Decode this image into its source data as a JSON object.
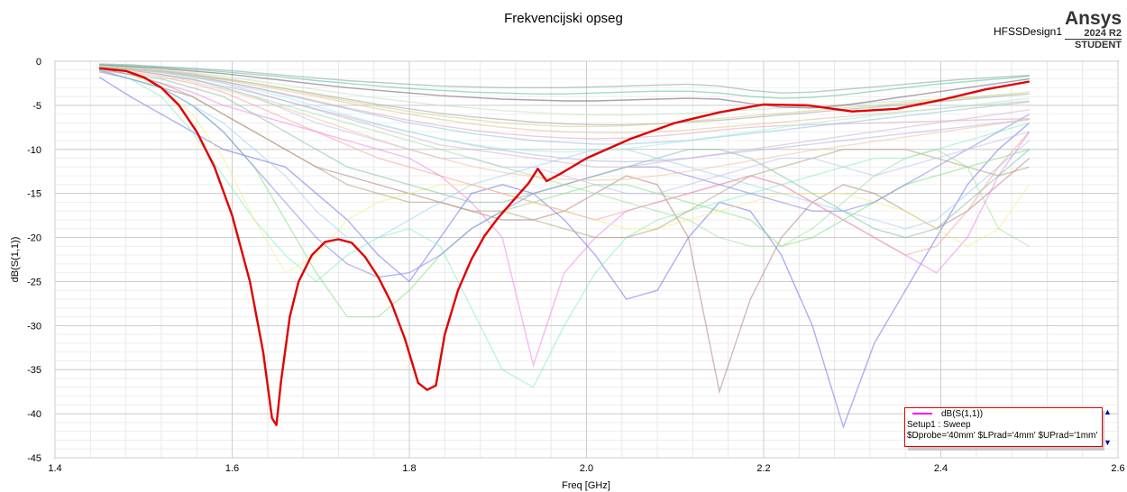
{
  "chart_data": {
    "type": "line",
    "title": "Frekvencijski opseg",
    "xlabel": "Freq [GHz]",
    "ylabel": "dB(S(1,1))",
    "xlim": [
      1.4,
      2.6
    ],
    "ylim": [
      -45,
      0
    ],
    "x_ticks": [
      "1.4",
      "1.6",
      "1.8",
      "2.0",
      "2.2",
      "2.4",
      "2.6"
    ],
    "y_ticks": [
      "0",
      "-5",
      "-10",
      "-15",
      "-20",
      "-25",
      "-30",
      "-35",
      "-40",
      "-45"
    ],
    "grid": true,
    "highlighted_series": {
      "name": "dB(S(1,1))",
      "color": "#e00000",
      "x": [
        1.45,
        1.48,
        1.5,
        1.52,
        1.54,
        1.56,
        1.58,
        1.6,
        1.62,
        1.635,
        1.645,
        1.65,
        1.655,
        1.665,
        1.675,
        1.69,
        1.705,
        1.72,
        1.735,
        1.75,
        1.765,
        1.78,
        1.795,
        1.81,
        1.82,
        1.83,
        1.84,
        1.855,
        1.87,
        1.885,
        1.9,
        1.92,
        1.935,
        1.945,
        1.955,
        1.97,
        2.0,
        2.05,
        2.1,
        2.15,
        2.2,
        2.25,
        2.3,
        2.35,
        2.4,
        2.45,
        2.5
      ],
      "y": [
        -0.8,
        -1.1,
        -1.8,
        -3.0,
        -5.0,
        -8.0,
        -12.0,
        -17.5,
        -25.0,
        -33.0,
        -40.5,
        -41.3,
        -36.5,
        -29.0,
        -25.0,
        -22.0,
        -20.5,
        -20.2,
        -20.6,
        -22.2,
        -24.5,
        -27.5,
        -31.5,
        -36.5,
        -37.3,
        -36.8,
        -31.0,
        -26.0,
        -22.5,
        -19.8,
        -17.8,
        -15.5,
        -13.8,
        -12.2,
        -13.6,
        -12.8,
        -11.0,
        -8.8,
        -7.0,
        -5.8,
        -4.9,
        -5.0,
        -5.7,
        -5.4,
        -4.4,
        -3.2,
        -2.3
      ]
    },
    "background_series": [
      {
        "color": "#6c6cf0",
        "y": [
          -1.8,
          -4,
          -6,
          -8,
          -10,
          -11,
          -12,
          -15,
          -18,
          -22,
          -25,
          -20,
          -15,
          -14,
          -15,
          -18,
          -22,
          -27,
          -26,
          -20,
          -16,
          -17,
          -22,
          -30,
          -41.5,
          -32,
          -26,
          -20,
          -14,
          -10,
          -7
        ]
      },
      {
        "color": "#b08080",
        "y": [
          -1.2,
          -2,
          -3,
          -4,
          -6,
          -8,
          -10,
          -12,
          -13,
          -14,
          -15,
          -16,
          -17,
          -18,
          -18,
          -17,
          -15,
          -13,
          -14,
          -20,
          -37.5,
          -27,
          -20,
          -16,
          -14,
          -15,
          -17,
          -19,
          -17,
          -14,
          -11
        ]
      },
      {
        "color": "#f080f0",
        "y": [
          -1,
          -1.5,
          -2.5,
          -3.5,
          -5,
          -6,
          -7,
          -8,
          -9,
          -10,
          -11,
          -13,
          -16,
          -20,
          -34.5,
          -24,
          -20,
          -17,
          -16,
          -15,
          -14,
          -13,
          -14,
          -16,
          -18,
          -20,
          -22,
          -24,
          -20,
          -13,
          -8
        ]
      },
      {
        "color": "#80f0c0",
        "y": [
          -1,
          -2,
          -4,
          -8,
          -13,
          -18,
          -22,
          -25,
          -22,
          -20,
          -19,
          -21,
          -28,
          -35,
          -37,
          -30,
          -24,
          -20,
          -18,
          -17,
          -16,
          -15,
          -14,
          -13,
          -12,
          -11,
          -11,
          -10,
          -9,
          -8,
          -7
        ]
      },
      {
        "color": "#80e080",
        "y": [
          -1,
          -2,
          -3,
          -5,
          -8,
          -12,
          -18,
          -24,
          -29,
          -29,
          -26,
          -22,
          -19,
          -17,
          -16,
          -15,
          -14,
          -14,
          -15,
          -16,
          -17,
          -18,
          -21,
          -20,
          -18,
          -16,
          -14,
          -13,
          -12,
          -11,
          -10
        ]
      },
      {
        "color": "#f0f080",
        "y": [
          -0.8,
          -1.5,
          -3,
          -6,
          -11,
          -18,
          -24,
          -22,
          -18,
          -16,
          -15,
          -14,
          -14,
          -15,
          -16,
          -17,
          -18,
          -19,
          -19,
          -18,
          -17,
          -16,
          -15,
          -15,
          -15,
          -16,
          -17,
          -19,
          -21,
          -19,
          -14
        ]
      },
      {
        "color": "#8080f0",
        "y": [
          -1,
          -2,
          -3,
          -5,
          -8,
          -12,
          -16,
          -20,
          -23,
          -24.5,
          -24,
          -22,
          -19,
          -17,
          -15,
          -14,
          -13,
          -12,
          -12,
          -13,
          -14,
          -15,
          -16,
          -17,
          -17,
          -16,
          -14,
          -12,
          -10,
          -8,
          -6
        ]
      },
      {
        "color": "#a0d0f0",
        "y": [
          -1,
          -2,
          -3,
          -5,
          -7,
          -10,
          -13,
          -17,
          -20,
          -20,
          -18,
          -16,
          -14,
          -13,
          -12,
          -11,
          -10,
          -10,
          -11,
          -12,
          -13,
          -14,
          -15,
          -16,
          -17,
          -18,
          -19,
          -18,
          -15,
          -12,
          -9
        ]
      },
      {
        "color": "#b0a070",
        "y": [
          -0.8,
          -1.5,
          -2.5,
          -4,
          -6,
          -8,
          -10,
          -12,
          -14,
          -15,
          -16,
          -16,
          -17,
          -17,
          -18,
          -19,
          -20,
          -20,
          -19,
          -17,
          -15,
          -13,
          -12,
          -11,
          -10,
          -10,
          -10,
          -11,
          -12,
          -13,
          -12
        ]
      },
      {
        "color": "#80c0a0",
        "y": [
          -0.8,
          -1.5,
          -2,
          -3,
          -4,
          -6,
          -8,
          -10,
          -12,
          -13,
          -14,
          -15,
          -16,
          -16,
          -15,
          -14,
          -13,
          -12,
          -11,
          -10,
          -10,
          -11,
          -13,
          -15,
          -17,
          -19,
          -20,
          -19,
          -16,
          -13,
          -10
        ]
      },
      {
        "color": "#f0a0a0",
        "y": [
          -0.7,
          -1.2,
          -1.8,
          -2.5,
          -3.5,
          -5,
          -6.5,
          -8,
          -9.5,
          -11,
          -12,
          -13,
          -14,
          -15,
          -16,
          -17,
          -18,
          -17,
          -16,
          -15,
          -14,
          -13,
          -14,
          -16,
          -18,
          -20,
          -22,
          -21,
          -17,
          -12,
          -8
        ]
      },
      {
        "color": "#c0c0f0",
        "y": [
          -0.7,
          -1,
          -1.5,
          -2,
          -3,
          -4,
          -5.5,
          -7,
          -8,
          -9,
          -10,
          -11,
          -11,
          -12,
          -12,
          -13,
          -14,
          -15,
          -15,
          -14,
          -13,
          -12,
          -11,
          -11,
          -12,
          -13,
          -12,
          -11,
          -10,
          -9,
          -8
        ]
      },
      {
        "color": "#a0e0a0",
        "y": [
          -0.7,
          -1,
          -1.5,
          -2,
          -3,
          -4,
          -5,
          -6,
          -7,
          -8,
          -9,
          -10,
          -11,
          -12,
          -13,
          -14,
          -15,
          -16,
          -17,
          -18,
          -20,
          -21,
          -21,
          -19,
          -16,
          -13,
          -11,
          -10,
          -12,
          -19,
          -21
        ]
      },
      {
        "color": "#d0b0d0",
        "y": [
          -0.6,
          -0.9,
          -1.3,
          -1.8,
          -2.5,
          -3.5,
          -4.5,
          -5.5,
          -6.5,
          -7.5,
          -8.5,
          -9.5,
          -10,
          -10.5,
          -11,
          -11.5,
          -12,
          -12,
          -11.5,
          -11,
          -10.5,
          -10,
          -9.5,
          -9,
          -8.5,
          -8,
          -7.5,
          -7,
          -6.5,
          -6,
          -5.5
        ]
      },
      {
        "color": "#90c0e0",
        "y": [
          -0.6,
          -0.9,
          -1.2,
          -1.7,
          -2.3,
          -3,
          -3.8,
          -4.6,
          -5.4,
          -6.2,
          -7,
          -7.6,
          -8.2,
          -8.6,
          -9,
          -9.2,
          -9.4,
          -9.4,
          -9.2,
          -9,
          -8.6,
          -8.2,
          -7.8,
          -7.4,
          -7,
          -6.6,
          -6.2,
          -5.8,
          -5.4,
          -5,
          -4.6
        ]
      },
      {
        "color": "#e0c090",
        "y": [
          -0.6,
          -0.9,
          -1.2,
          -1.6,
          -2.1,
          -2.7,
          -3.3,
          -4,
          -4.7,
          -5.4,
          -6,
          -6.6,
          -7.1,
          -7.5,
          -7.8,
          -8,
          -8.1,
          -8.1,
          -8,
          -7.8,
          -7.5,
          -7.2,
          -6.9,
          -6.6,
          -6.3,
          -6,
          -5.7,
          -5.4,
          -5.1,
          -4.8,
          -4.5
        ]
      },
      {
        "color": "#a0a0a0",
        "y": [
          -0.5,
          -0.8,
          -1.1,
          -1.5,
          -2,
          -2.5,
          -3.1,
          -3.7,
          -4.3,
          -4.9,
          -5.4,
          -5.9,
          -6.3,
          -6.6,
          -6.9,
          -7.1,
          -7.2,
          -7.2,
          -7.1,
          -6.9,
          -6.7,
          -6.4,
          -6.1,
          -5.8,
          -5.5,
          -5.2,
          -4.9,
          -4.6,
          -4.3,
          -4,
          -3.7
        ]
      },
      {
        "color": "#c0e0c0",
        "y": [
          -0.5,
          -0.7,
          -1,
          -1.3,
          -1.7,
          -2.2,
          -2.7,
          -3.2,
          -3.7,
          -4.2,
          -4.6,
          -5,
          -5.3,
          -5.6,
          -5.8,
          -6,
          -6.1,
          -6.1,
          -6,
          -5.9,
          -5.7,
          -5.5,
          -5.3,
          -5.1,
          -4.9,
          -4.7,
          -4.5,
          -4.3,
          -4.1,
          -3.9,
          -3.7
        ]
      },
      {
        "color": "#705070",
        "y": [
          -0.4,
          -0.6,
          -0.8,
          -1.1,
          -1.4,
          -1.8,
          -2.2,
          -2.6,
          -3,
          -3.3,
          -3.6,
          -3.9,
          -4.1,
          -4.3,
          -4.4,
          -4.5,
          -4.5,
          -4.4,
          -4.3,
          -4.2,
          -4.3,
          -4.8,
          -5.2,
          -5.3,
          -5,
          -4.5,
          -4,
          -3.5,
          -3,
          -2.5,
          -2
        ]
      },
      {
        "color": "#50c090",
        "y": [
          -0.4,
          -0.5,
          -0.7,
          -0.9,
          -1.2,
          -1.5,
          -1.8,
          -2.2,
          -2.5,
          -2.8,
          -3.1,
          -3.3,
          -3.5,
          -3.6,
          -3.7,
          -3.7,
          -3.6,
          -3.5,
          -3.4,
          -3.4,
          -3.6,
          -4,
          -4.2,
          -4.1,
          -3.8,
          -3.4,
          -3,
          -2.6,
          -2.3,
          -2,
          -1.7
        ]
      },
      {
        "color": "#e0a0c0",
        "y": [
          -0.5,
          -0.8,
          -1.2,
          -1.7,
          -2.3,
          -3,
          -3.7,
          -4.5,
          -5.3,
          -6,
          -6.7,
          -7.3,
          -7.8,
          -8.2,
          -8.5,
          -8.7,
          -8.8,
          -8.7,
          -8.5,
          -8.2,
          -7.8,
          -7.5,
          -7.3,
          -7.2,
          -7.1,
          -7,
          -6.9,
          -6.8,
          -6.7,
          -6.6,
          -6.5
        ]
      },
      {
        "color": "#b0b0e0",
        "y": [
          -0.6,
          -1,
          -1.5,
          -2.1,
          -2.8,
          -3.6,
          -4.5,
          -5.4,
          -6.3,
          -7.2,
          -8,
          -8.8,
          -9.5,
          -10.1,
          -10.6,
          -11,
          -11.3,
          -11.4,
          -11.3,
          -11,
          -10.6,
          -10.2,
          -9.8,
          -9.4,
          -9,
          -8.6,
          -8.2,
          -7.8,
          -7.4,
          -7,
          -6.6
        ]
      },
      {
        "color": "#d0d080",
        "y": [
          -0.5,
          -0.7,
          -1,
          -1.4,
          -1.9,
          -2.5,
          -3.1,
          -3.8,
          -4.5,
          -5.1,
          -5.7,
          -6.2,
          -6.6,
          -7,
          -7.2,
          -7.4,
          -7.4,
          -7.3,
          -7.1,
          -6.8,
          -6.5,
          -6.2,
          -5.9,
          -5.6,
          -5.3,
          -5,
          -4.7,
          -4.4,
          -4.1,
          -3.8,
          -3.5
        ]
      },
      {
        "color": "#80a0a0",
        "y": [
          -0.3,
          -0.4,
          -0.6,
          -0.8,
          -1,
          -1.3,
          -1.6,
          -1.9,
          -2.2,
          -2.4,
          -2.6,
          -2.8,
          -2.9,
          -3,
          -3,
          -3,
          -2.9,
          -2.8,
          -2.7,
          -2.6,
          -2.8,
          -3.3,
          -3.6,
          -3.5,
          -3.2,
          -2.9,
          -2.6,
          -2.3,
          -2,
          -1.8,
          -1.6
        ]
      },
      {
        "color": "#f0c0a0",
        "y": [
          -0.6,
          -1,
          -1.6,
          -2.3,
          -3.2,
          -4.2,
          -5.3,
          -6.5,
          -7.7,
          -8.9,
          -10,
          -11,
          -11.9,
          -12.6,
          -13.1,
          -13.4,
          -13.5,
          -13.4,
          -13,
          -12.5,
          -11.9,
          -11.3,
          -10.7,
          -10.1,
          -9.6,
          -9.1,
          -8.6,
          -8.1,
          -7.6,
          -7.1,
          -6.6
        ]
      },
      {
        "color": "#a0f0e0",
        "y": [
          -0.5,
          -0.8,
          -1.2,
          -1.7,
          -2.4,
          -3.2,
          -4.1,
          -5.1,
          -6.1,
          -7.1,
          -8,
          -8.8,
          -9.4,
          -9.9,
          -10.2,
          -10.3,
          -10.2,
          -9.9,
          -9.5,
          -9,
          -8.5,
          -8,
          -7.5,
          -7,
          -6.6,
          -6.2,
          -5.8,
          -5.4,
          -5,
          -4.6,
          -4.2
        ]
      }
    ],
    "background_x": [
      1.45,
      1.485,
      1.52,
      1.555,
      1.59,
      1.625,
      1.66,
      1.695,
      1.73,
      1.765,
      1.8,
      1.835,
      1.87,
      1.905,
      1.94,
      1.975,
      2.01,
      2.045,
      2.08,
      2.115,
      2.15,
      2.185,
      2.22,
      2.255,
      2.29,
      2.325,
      2.36,
      2.395,
      2.43,
      2.465,
      2.5
    ]
  },
  "header": {
    "title": "Frekvencijski opseg",
    "design_name": "HFSSDesign1",
    "logo": "Ansys",
    "logo_version": "2024 R2",
    "logo_edition": "STUDENT"
  },
  "legend": {
    "trace_label": "dB(S(1,1))",
    "trace_color": "#ff00ff",
    "setup_line": "Setup1 : Sweep",
    "params_line": "$Dprobe='40mm' $LPrad='4mm' $UPrad='1mm'"
  }
}
